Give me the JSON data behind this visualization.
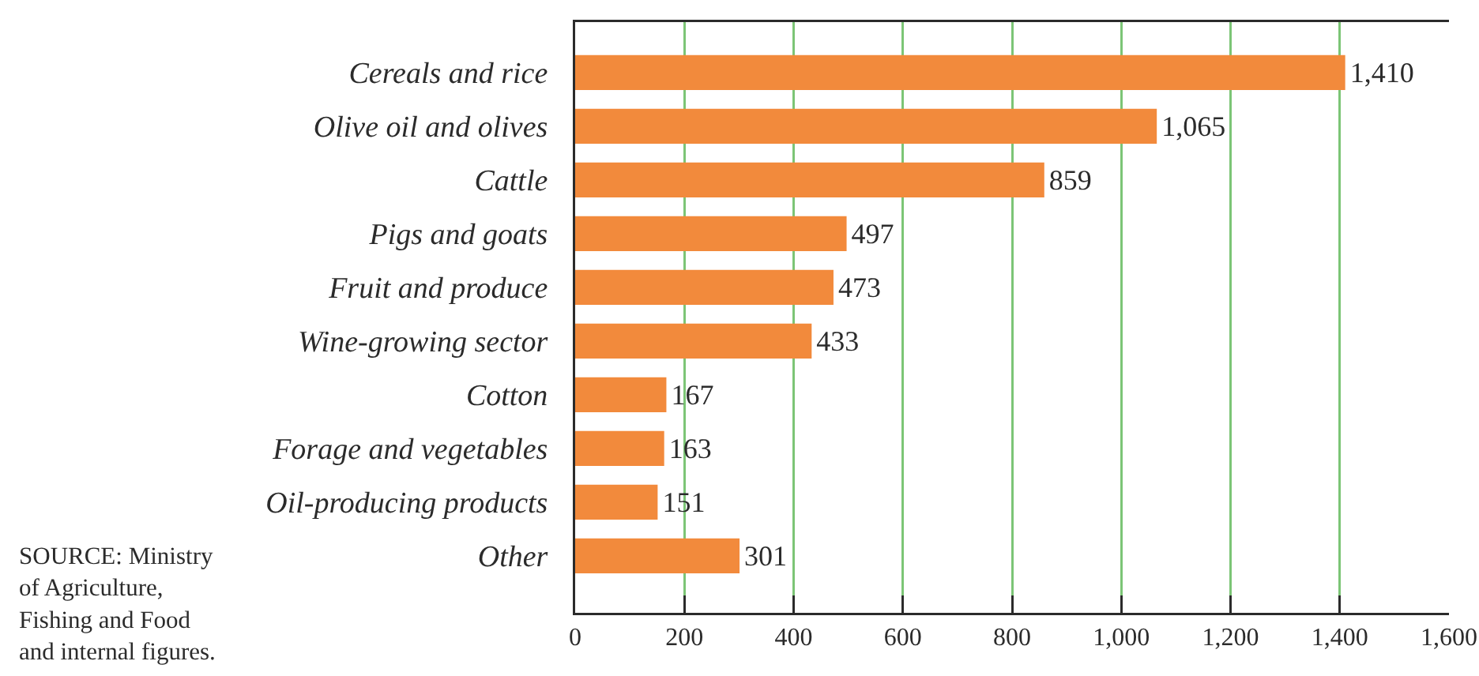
{
  "chart_data": {
    "type": "bar",
    "orientation": "horizontal",
    "categories": [
      "Cereals and rice",
      "Olive oil and olives",
      "Cattle",
      "Pigs and goats",
      "Fruit and produce",
      "Wine-growing sector",
      "Cotton",
      "Forage and vegetables",
      "Oil-producing products",
      "Other"
    ],
    "values": [
      1410,
      1065,
      859,
      497,
      473,
      433,
      167,
      163,
      151,
      301
    ],
    "value_labels": [
      "1,410",
      "1,065",
      "859",
      "497",
      "473",
      "433",
      "167",
      "163",
      "151",
      "301"
    ],
    "color": "#f28a3c",
    "xlim": [
      0,
      1600
    ],
    "xticks": [
      0,
      200,
      400,
      600,
      800,
      {
        "value": 1000,
        "label": "1,000"
      },
      {
        "value": 1200,
        "label": "1,200"
      },
      {
        "value": 1400,
        "label": "1,400"
      },
      {
        "value": 1600,
        "label": "1,600"
      }
    ],
    "grid": "x",
    "annotations": [
      "SOURCE: Ministry\nof Agriculture,\nFishing and Food\nand internal figures."
    ]
  }
}
